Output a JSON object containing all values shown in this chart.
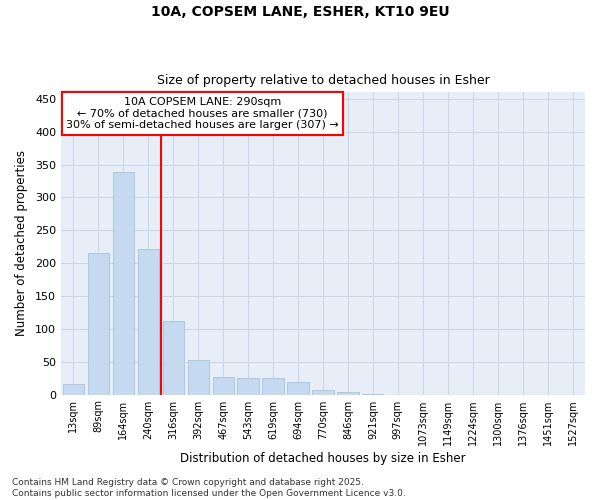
{
  "title1": "10A, COPSEM LANE, ESHER, KT10 9EU",
  "title2": "Size of property relative to detached houses in Esher",
  "xlabel": "Distribution of detached houses by size in Esher",
  "ylabel": "Number of detached properties",
  "categories": [
    "13sqm",
    "89sqm",
    "164sqm",
    "240sqm",
    "316sqm",
    "392sqm",
    "467sqm",
    "543sqm",
    "619sqm",
    "694sqm",
    "770sqm",
    "846sqm",
    "921sqm",
    "997sqm",
    "1073sqm",
    "1149sqm",
    "1224sqm",
    "1300sqm",
    "1376sqm",
    "1451sqm",
    "1527sqm"
  ],
  "values": [
    16,
    215,
    338,
    222,
    112,
    53,
    26,
    25,
    25,
    19,
    7,
    4,
    1,
    0,
    0,
    0,
    0,
    0,
    0,
    0,
    0
  ],
  "bar_color": "#c5d9f0",
  "bar_edge_color": "#a0bcd8",
  "vline_x": 3.5,
  "vline_color": "red",
  "annotation_text": "10A COPSEM LANE: 290sqm\n← 70% of detached houses are smaller (730)\n30% of semi-detached houses are larger (307) →",
  "annotation_box_color": "red",
  "ylim": [
    0,
    460
  ],
  "yticks": [
    0,
    50,
    100,
    150,
    200,
    250,
    300,
    350,
    400,
    450
  ],
  "grid_color": "#c8d4e8",
  "bg_color": "#ffffff",
  "plot_bg_color": "#e8eef8",
  "footer": "Contains HM Land Registry data © Crown copyright and database right 2025.\nContains public sector information licensed under the Open Government Licence v3.0."
}
